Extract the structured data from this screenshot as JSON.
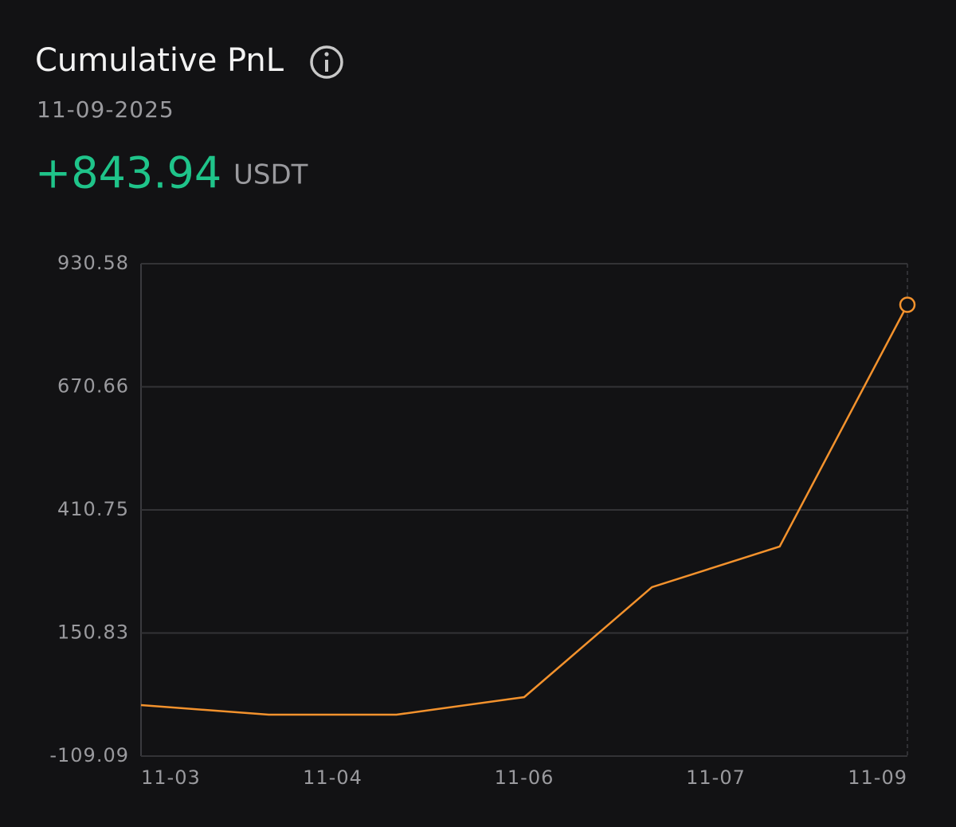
{
  "header": {
    "title": "Cumulative PnL",
    "date": "11-09-2025",
    "value": "+843.94",
    "unit": "USDT"
  },
  "chart_data": {
    "type": "line",
    "x_labels": [
      "11-03",
      "11-04",
      "11-06",
      "11-07",
      "11-09"
    ],
    "values": [
      -1.4,
      -21.6,
      -21.6,
      15.4,
      247.6,
      333.4,
      843.94
    ],
    "color": "#f3922d",
    "ylim": [
      -109.09,
      930.58
    ],
    "yticks": [
      930.58,
      670.66,
      410.75,
      150.83,
      -109.09
    ],
    "grid": true
  }
}
